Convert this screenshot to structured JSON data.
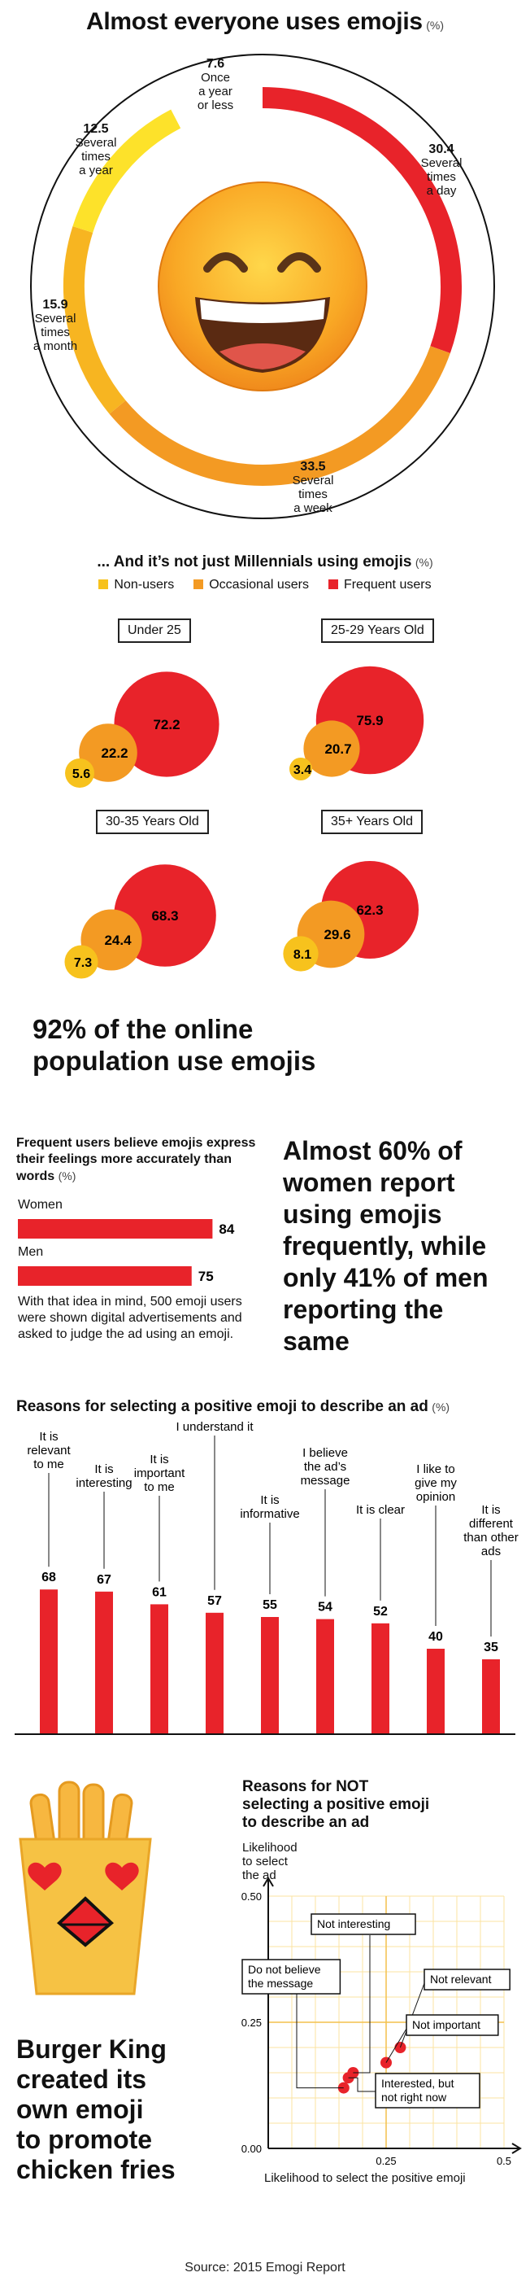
{
  "section1": {
    "title": "Almost everyone uses emojis",
    "unit": "(%)",
    "chart_data": {
      "type": "pie",
      "title": "Almost everyone uses emojis",
      "unit": "%",
      "slices": [
        {
          "value": 30.4,
          "label": "Several times a day",
          "color": "#e8232a"
        },
        {
          "value": 33.5,
          "label": "Several times a week",
          "color": "#f39a23"
        },
        {
          "value": 15.9,
          "label": "Several times a month",
          "color": "#f7b521"
        },
        {
          "value": 12.5,
          "label": "Several times a year",
          "color": "#fde22a"
        },
        {
          "value": 7.6,
          "label": "Once a year or less",
          "color": "#ffffff"
        }
      ]
    },
    "labels": [
      {
        "value": "7.6",
        "text": [
          "Once",
          "a year",
          "or less"
        ]
      },
      {
        "value": "30.4",
        "text": [
          "Several",
          "times",
          "a day"
        ]
      },
      {
        "value": "33.5",
        "text": [
          "Several",
          "times",
          "a week"
        ]
      },
      {
        "value": "15.9",
        "text": [
          "Several",
          "times",
          "a month"
        ]
      },
      {
        "value": "12.5",
        "text": [
          "Several",
          "times",
          "a year"
        ]
      }
    ]
  },
  "section2": {
    "title": "... And it’s not just Millennials using emojis",
    "unit": "(%)",
    "legend": [
      {
        "label": "Non-users",
        "color": "#f7c21d"
      },
      {
        "label": "Occasional users",
        "color": "#f39a23"
      },
      {
        "label": "Frequent users",
        "color": "#e8232a"
      }
    ],
    "chart_data": {
      "type": "bubble",
      "unit": "%",
      "groups": [
        {
          "name": "Under 25",
          "non_users": 5.6,
          "occasional": 22.2,
          "frequent": 72.2
        },
        {
          "name": "25-29 Years Old",
          "non_users": 3.4,
          "occasional": 20.7,
          "frequent": 75.9
        },
        {
          "name": "30-35 Years Old",
          "non_users": 7.3,
          "occasional": 24.4,
          "frequent": 68.3
        },
        {
          "name": "35+ Years Old",
          "non_users": 8.1,
          "occasional": 29.6,
          "frequent": 62.3
        }
      ]
    },
    "values_text": [
      {
        "frequent": "72.2",
        "occasional": "22.2",
        "non_users": "5.6"
      },
      {
        "frequent": "75.9",
        "occasional": "20.7",
        "non_users": "3.4"
      },
      {
        "frequent": "68.3",
        "occasional": "24.4",
        "non_users": "7.3"
      },
      {
        "frequent": "62.3",
        "occasional": "29.6",
        "non_users": "8.1"
      }
    ]
  },
  "statement1": [
    "92% of the online",
    "population use emojis"
  ],
  "section3": {
    "title": "Frequent users believe emojis express their feelings more accurately than words",
    "unit": "(%)",
    "chart_data": {
      "type": "bar",
      "orientation": "horizontal",
      "categories": [
        "Women",
        "Men"
      ],
      "values": [
        84,
        75
      ],
      "unit": "%",
      "color": "#e8232a"
    },
    "value_labels": [
      "84",
      "75"
    ],
    "note": "With that idea in mind, 500 emoji users were shown digital advertisements and asked to judge the ad using an emoji.",
    "statement": [
      "Almost 60% of",
      "women report",
      "using emojis",
      "frequently, while",
      "only 41% of men",
      "reporting the",
      "same"
    ]
  },
  "section4": {
    "title": "Reasons for selecting a positive emoji to describe an ad",
    "unit": "(%)",
    "chart_data": {
      "type": "bar",
      "unit": "%",
      "categories": [
        "It is relevant to me",
        "It is interesting",
        "It is important to me",
        "I understand it",
        "It is informative",
        "I believe the ad's message",
        "It is clear",
        "I like to give my opinion",
        "It is different than other ads"
      ],
      "values": [
        68,
        67,
        61,
        57,
        55,
        54,
        52,
        40,
        35
      ],
      "color": "#e8232a"
    },
    "labels": [
      {
        "value": "68",
        "text": [
          "It is",
          "relevant",
          "to me"
        ]
      },
      {
        "value": "67",
        "text": [
          "It is",
          "interesting"
        ]
      },
      {
        "value": "61",
        "text": [
          "It is",
          "important",
          "to me"
        ]
      },
      {
        "value": "57",
        "text": [
          "I understand it"
        ]
      },
      {
        "value": "55",
        "text": [
          "It is",
          "informative"
        ]
      },
      {
        "value": "54",
        "text": [
          "I believe",
          "the ad’s",
          "message"
        ]
      },
      {
        "value": "52",
        "text": [
          "It is clear"
        ]
      },
      {
        "value": "40",
        "text": [
          "I like to",
          "give my",
          "opinion"
        ]
      },
      {
        "value": "35",
        "text": [
          "It is",
          "different",
          "than other",
          "ads"
        ]
      }
    ]
  },
  "section5": {
    "burger_king_text": [
      "Burger King",
      "created its",
      "own emoji",
      "to promote",
      "chicken fries"
    ],
    "title": [
      "Reasons for NOT",
      "selecting a positive emoji",
      "to describe an ad"
    ],
    "chart_data": {
      "type": "scatter",
      "ylabel": "Likelihood to select the ad",
      "xlabel": "Likelihood to select the positive emoji",
      "xlim": [
        0,
        0.5
      ],
      "ylim": [
        0,
        0.5
      ],
      "x_ticks": [
        "0.25",
        "0.5"
      ],
      "y_ticks": [
        "0.00",
        "0.25",
        "0.50"
      ],
      "points": [
        {
          "label": "Not interesting",
          "x": 0.18,
          "y": 0.15
        },
        {
          "label": "Do not believe the message",
          "x": 0.16,
          "y": 0.12
        },
        {
          "label": "Not relevant",
          "x": 0.28,
          "y": 0.2
        },
        {
          "label": "Not important",
          "x": 0.25,
          "y": 0.17
        },
        {
          "label": "Interested, but not right now",
          "x": 0.17,
          "y": 0.14
        }
      ],
      "color": "#e8232a"
    },
    "ylabel_lines": [
      "Likelihood",
      "to select",
      "the ad"
    ],
    "callouts": {
      "not_interesting": "Not interesting",
      "do_not_believe": [
        "Do not believe",
        "the message"
      ],
      "not_relevant": "Not relevant",
      "not_important": "Not important",
      "interested": [
        "Interested, but",
        "not right now"
      ]
    }
  },
  "source": "Source: 2015 Emogi Report"
}
